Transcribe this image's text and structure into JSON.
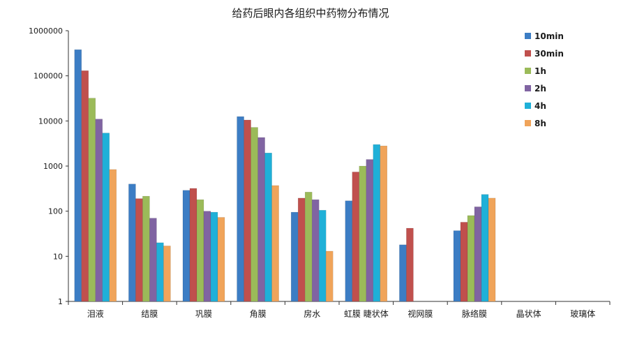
{
  "chart_data": {
    "type": "bar",
    "title": "给药后眼内各组织中药物分布情况",
    "xlabel": "",
    "ylabel": "",
    "yscale": "log",
    "ylim": [
      1,
      1000000
    ],
    "yticks": [
      "1",
      "10",
      "100",
      "1000",
      "10000",
      "100000",
      "1000000"
    ],
    "grid": false,
    "legend_position": "top-right",
    "categories": [
      "泪液",
      "结膜",
      "巩膜",
      "角膜",
      "房水",
      "虹膜 睫状体",
      "视网膜",
      "脉络膜",
      "晶状体",
      "玻璃体"
    ],
    "series": [
      {
        "name": "10min",
        "color": "#3c7dc4",
        "values": [
          380000,
          400,
          290,
          12500,
          95,
          170,
          18,
          37,
          null,
          null
        ]
      },
      {
        "name": "30min",
        "color": "#c0504d",
        "values": [
          130000,
          190,
          320,
          10500,
          195,
          740,
          42,
          57,
          null,
          null
        ]
      },
      {
        "name": "1h",
        "color": "#9bbb59",
        "values": [
          32000,
          215,
          180,
          7200,
          265,
          1000,
          null,
          80,
          null,
          null
        ]
      },
      {
        "name": "2h",
        "color": "#8064a2",
        "values": [
          11000,
          70,
          100,
          4300,
          180,
          1400,
          null,
          125,
          null,
          null
        ]
      },
      {
        "name": "4h",
        "color": "#1fb0d8",
        "values": [
          5400,
          20,
          95,
          1950,
          105,
          3000,
          null,
          235,
          null,
          null
        ]
      },
      {
        "name": "8h",
        "color": "#f0a45a",
        "values": [
          840,
          17,
          73,
          370,
          13,
          2800,
          null,
          195,
          null,
          null
        ]
      }
    ]
  }
}
